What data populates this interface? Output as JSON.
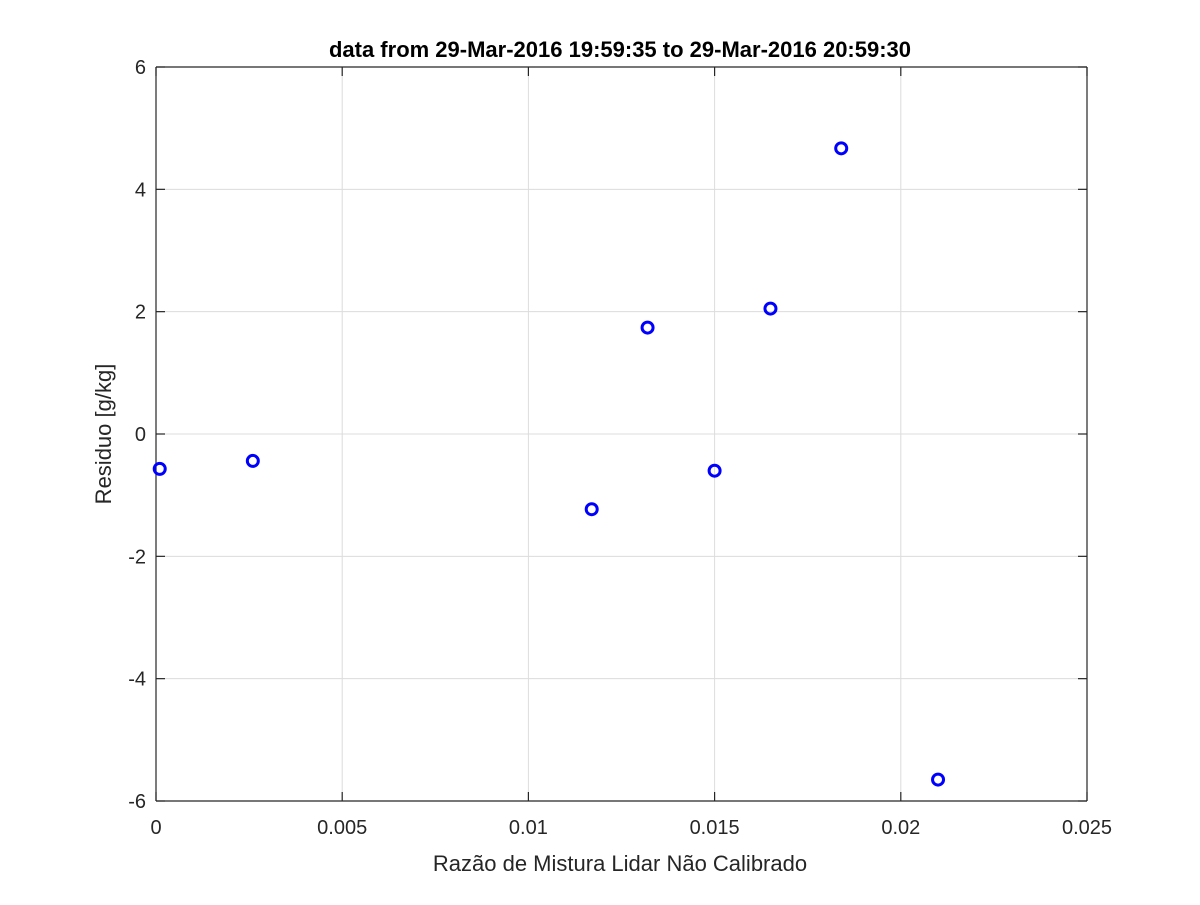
{
  "chart_data": {
    "type": "scatter",
    "title": "data from 29-Mar-2016 19:59:35 to 29-Mar-2016 20:59:30",
    "xlabel": "Razão de Mistura Lidar Não Calibrado",
    "ylabel": "Residuo [g/kg]",
    "xlim": [
      0,
      0.025
    ],
    "ylim": [
      -6,
      6
    ],
    "xticks": [
      0,
      0.005,
      0.01,
      0.015,
      0.02,
      0.025
    ],
    "xtick_labels": [
      "0",
      "0.005",
      "0.01",
      "0.015",
      "0.02",
      "0.025"
    ],
    "yticks": [
      -6,
      -4,
      -2,
      0,
      2,
      4,
      6
    ],
    "ytick_labels": [
      "-6",
      "-4",
      "-2",
      "0",
      "2",
      "4",
      "6"
    ],
    "grid": true,
    "marker": "circle",
    "marker_color": "#0000ff",
    "series": [
      {
        "points": [
          {
            "x": 0.0001,
            "y": -0.57
          },
          {
            "x": 0.0026,
            "y": -0.44
          },
          {
            "x": 0.0117,
            "y": -1.23
          },
          {
            "x": 0.0132,
            "y": 1.74
          },
          {
            "x": 0.015,
            "y": -0.6
          },
          {
            "x": 0.0165,
            "y": 2.05
          },
          {
            "x": 0.0184,
            "y": 4.67
          },
          {
            "x": 0.021,
            "y": -5.65
          }
        ]
      }
    ]
  }
}
